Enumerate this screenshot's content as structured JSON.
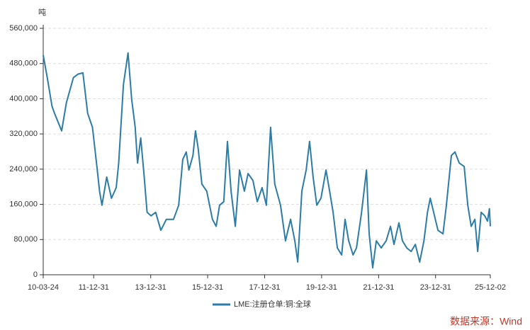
{
  "chart_data": {
    "type": "line",
    "y_unit": "吨",
    "source": "数据来源：Wind",
    "x": [
      "10-03-24",
      "10-05-15",
      "10-07-15",
      "10-08-15",
      "10-11-15",
      "11-01-15",
      "11-04-15",
      "11-06-15",
      "11-08-15",
      "11-10-15",
      "11-12-15",
      "12-02-15",
      "12-03-15",
      "12-04-15",
      "12-06-15",
      "12-08-15",
      "12-10-15",
      "12-11-15",
      "13-01-15",
      "13-03-15",
      "13-05-01",
      "13-06-15",
      "13-07-15",
      "13-08-25",
      "13-10-01",
      "13-11-15",
      "14-01-05",
      "14-03-05",
      "14-05-10",
      "14-07-20",
      "14-10-20",
      "14-12-25",
      "15-02-15",
      "15-04-01",
      "15-05-05",
      "15-06-25",
      "15-07-28",
      "15-09-01",
      "15-10-18",
      "15-12-20",
      "16-03-01",
      "16-04-18",
      "16-06-01",
      "16-07-25",
      "16-09-10",
      "16-10-26",
      "16-12-20",
      "17-02-12",
      "17-04-15",
      "17-06-01",
      "17-08-03",
      "17-09-27",
      "17-11-28",
      "18-01-22",
      "18-03-17",
      "18-05-10",
      "18-07-22",
      "18-09-24",
      "18-11-28",
      "19-01-22",
      "19-02-28",
      "19-04-22",
      "19-06-16",
      "19-07-30",
      "19-09-13",
      "19-10-30",
      "19-12-23",
      "20-02-25",
      "20-04-12",
      "20-05-26",
      "20-07-20",
      "20-09-13",
      "20-10-27",
      "20-12-12",
      "21-02-06",
      "21-03-22",
      "21-05-26",
      "21-07-28",
      "21-09-01",
      "21-10-16",
      "21-12-01",
      "22-02-02",
      "22-04-07",
      "22-06-01",
      "22-07-16",
      "22-09-17",
      "22-11-02",
      "22-12-27",
      "23-02-20",
      "23-04-16",
      "23-06-10",
      "23-08-04",
      "23-09-18",
      "23-10-24",
      "23-12-17",
      "24-01-31",
      "24-04-04",
      "24-05-18",
      "24-07-20",
      "24-09-05",
      "24-10-29",
      "25-01-01",
      "25-02-16",
      "25-04-01",
      "25-05-18",
      "25-06-23",
      "25-08-07",
      "25-09-21",
      "25-10-27",
      "25-11-20",
      "25-12-02"
    ],
    "series": [
      {
        "name": "LME:注册仓单:铜:全球",
        "color": "#2b7ca6",
        "values": [
          499000,
          448000,
          383000,
          367000,
          327000,
          391000,
          448000,
          456000,
          459000,
          367000,
          335000,
          238000,
          190000,
          158000,
          222000,
          174000,
          198000,
          254000,
          432000,
          504000,
          399000,
          335000,
          254000,
          311000,
          238000,
          142000,
          134000,
          142000,
          101000,
          126000,
          126000,
          158000,
          262000,
          279000,
          238000,
          271000,
          327000,
          287000,
          206000,
          190000,
          126000,
          110000,
          158000,
          166000,
          303000,
          190000,
          110000,
          238000,
          190000,
          230000,
          214000,
          166000,
          198000,
          158000,
          335000,
          206000,
          158000,
          77000,
          126000,
          77000,
          29000,
          190000,
          238000,
          303000,
          222000,
          158000,
          174000,
          238000,
          190000,
          142000,
          61000,
          45000,
          126000,
          77000,
          45000,
          61000,
          142000,
          238000,
          93000,
          16000,
          77000,
          61000,
          77000,
          110000,
          69000,
          118000,
          77000,
          61000,
          53000,
          69000,
          29000,
          77000,
          142000,
          174000,
          134000,
          101000,
          93000,
          158000,
          271000,
          279000,
          254000,
          246000,
          158000,
          110000,
          126000,
          53000,
          142000,
          134000,
          122000,
          150000,
          110000
        ]
      }
    ],
    "xlim": [
      "10-03-24",
      "25-12-02"
    ],
    "xticks": [
      "10-03-24",
      "11-12-31",
      "13-12-31",
      "15-12-31",
      "17-12-31",
      "19-12-31",
      "21-12-31",
      "23-12-31",
      "25-12-02"
    ],
    "ylim": [
      0,
      560000
    ],
    "yticks": [
      0,
      {
        "value": 80000,
        "label": "80,000"
      },
      {
        "value": 160000,
        "label": "160,000"
      },
      {
        "value": 240000,
        "label": "240,000"
      },
      {
        "value": 320000,
        "label": "320,000"
      },
      {
        "value": 400000,
        "label": "400,000"
      },
      {
        "value": 480000,
        "label": "480,000"
      },
      {
        "value": 560000,
        "label": "560,000"
      }
    ],
    "grid": true,
    "legend": "bottom"
  }
}
